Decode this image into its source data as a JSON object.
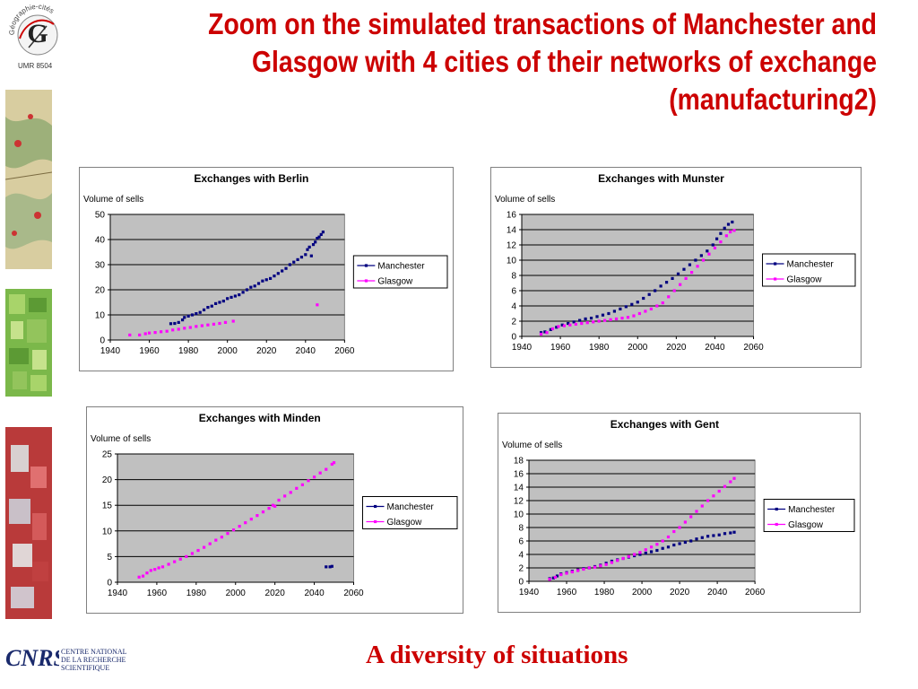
{
  "title_lines": [
    "Zoom on the simulated transactions of Manchester and",
    "Glasgow with 4 cities of their networks of exchange",
    "(manufacturing2)"
  ],
  "logo": {
    "name": "Géographie-cités",
    "label": "UMR 8504"
  },
  "footer": "A diversity of situations",
  "cnrs": {
    "text": "CNRS",
    "lines": [
      "CENTRE NATIONAL",
      "DE LA RECHERCHE",
      "SCIENTIFIQUE"
    ]
  },
  "colors": {
    "title": "#cc0000",
    "manchester": "#000080",
    "glasgow": "#ff00ff",
    "plot_bg": "#c0c0c0"
  },
  "chart_data": [
    {
      "type": "scatter",
      "title": "Exchanges with Berlin",
      "ylabel": "Volume of sells",
      "xlabel": "",
      "xlim": [
        1940,
        2060
      ],
      "ylim": [
        0,
        50
      ],
      "xticks": [
        1940,
        1960,
        1980,
        2000,
        2020,
        2040,
        2060
      ],
      "yticks": [
        0,
        10,
        20,
        30,
        40,
        50
      ],
      "grid": true,
      "legend": "right",
      "series": [
        {
          "name": "Manchester",
          "points": [
            [
              1971,
              6.5
            ],
            [
              1973,
              6.6
            ],
            [
              1975,
              7
            ],
            [
              1977,
              8
            ],
            [
              1978,
              9
            ],
            [
              1980,
              9.5
            ],
            [
              1982,
              10
            ],
            [
              1984,
              10.5
            ],
            [
              1986,
              11
            ],
            [
              1988,
              12
            ],
            [
              1990,
              13
            ],
            [
              1992,
              13.5
            ],
            [
              1994,
              14.5
            ],
            [
              1996,
              15
            ],
            [
              1998,
              15.5
            ],
            [
              2000,
              16.5
            ],
            [
              2002,
              17
            ],
            [
              2004,
              17.5
            ],
            [
              2006,
              18
            ],
            [
              2008,
              19
            ],
            [
              2010,
              20
            ],
            [
              2012,
              21
            ],
            [
              2014,
              21.5
            ],
            [
              2016,
              22.5
            ],
            [
              2018,
              23.5
            ],
            [
              2020,
              24
            ],
            [
              2022,
              24.5
            ],
            [
              2024,
              25.5
            ],
            [
              2026,
              26.5
            ],
            [
              2028,
              27.5
            ],
            [
              2030,
              28.5
            ],
            [
              2032,
              30
            ],
            [
              2034,
              31
            ],
            [
              2036,
              32
            ],
            [
              2038,
              33
            ],
            [
              2040,
              34
            ],
            [
              2041,
              36
            ],
            [
              2042,
              37
            ],
            [
              2043,
              33.5
            ],
            [
              2044,
              38
            ],
            [
              2045,
              39
            ],
            [
              2046,
              40.5
            ],
            [
              2047,
              41
            ],
            [
              2048,
              42
            ],
            [
              2049,
              43
            ]
          ]
        },
        {
          "name": "Glasgow",
          "points": [
            [
              1950,
              2
            ],
            [
              1955,
              2
            ],
            [
              1958,
              2.5
            ],
            [
              1960,
              2.8
            ],
            [
              1963,
              3
            ],
            [
              1966,
              3.3
            ],
            [
              1969,
              3.5
            ],
            [
              1972,
              4
            ],
            [
              1975,
              4.3
            ],
            [
              1978,
              4.7
            ],
            [
              1981,
              5
            ],
            [
              1984,
              5.4
            ],
            [
              1987,
              5.7
            ],
            [
              1990,
              6
            ],
            [
              1993,
              6.3
            ],
            [
              1996,
              6.6
            ],
            [
              1999,
              7
            ],
            [
              2003,
              7.5
            ],
            [
              2046,
              14
            ]
          ]
        }
      ]
    },
    {
      "type": "scatter",
      "title": "Exchanges with Munster",
      "ylabel": "Volume of sells",
      "xlabel": "",
      "xlim": [
        1940,
        2060
      ],
      "ylim": [
        0,
        16
      ],
      "xticks": [
        1940,
        1960,
        1980,
        2000,
        2020,
        2040,
        2060
      ],
      "yticks": [
        0,
        2,
        4,
        6,
        8,
        10,
        12,
        14,
        16
      ],
      "grid": true,
      "legend": "right",
      "series": [
        {
          "name": "Manchester",
          "points": [
            [
              1950,
              0.5
            ],
            [
              1952,
              0.6
            ],
            [
              1955,
              0.9
            ],
            [
              1958,
              1.2
            ],
            [
              1961,
              1.5
            ],
            [
              1964,
              1.7
            ],
            [
              1967,
              1.9
            ],
            [
              1970,
              2.1
            ],
            [
              1973,
              2.3
            ],
            [
              1976,
              2.4
            ],
            [
              1979,
              2.6
            ],
            [
              1982,
              2.8
            ],
            [
              1985,
              3
            ],
            [
              1988,
              3.3
            ],
            [
              1991,
              3.6
            ],
            [
              1994,
              3.9
            ],
            [
              1997,
              4.2
            ],
            [
              2000,
              4.5
            ],
            [
              2003,
              5
            ],
            [
              2006,
              5.5
            ],
            [
              2009,
              6
            ],
            [
              2012,
              6.6
            ],
            [
              2015,
              7.1
            ],
            [
              2018,
              7.6
            ],
            [
              2021,
              8.2
            ],
            [
              2024,
              8.8
            ],
            [
              2027,
              9.4
            ],
            [
              2030,
              10
            ],
            [
              2033,
              10.6
            ],
            [
              2036,
              11.2
            ],
            [
              2039,
              12
            ],
            [
              2041,
              12.8
            ],
            [
              2043,
              13.5
            ],
            [
              2045,
              14.2
            ],
            [
              2047,
              14.7
            ],
            [
              2049,
              15
            ]
          ]
        },
        {
          "name": "Glasgow",
          "points": [
            [
              1950,
              0.3
            ],
            [
              1953,
              0.5
            ],
            [
              1956,
              1
            ],
            [
              1959,
              1.3
            ],
            [
              1962,
              1.4
            ],
            [
              1965,
              1.5
            ],
            [
              1968,
              1.6
            ],
            [
              1971,
              1.7
            ],
            [
              1974,
              1.8
            ],
            [
              1977,
              1.9
            ],
            [
              1980,
              2
            ],
            [
              1983,
              2.1
            ],
            [
              1986,
              2.2
            ],
            [
              1989,
              2.3
            ],
            [
              1992,
              2.4
            ],
            [
              1995,
              2.5
            ],
            [
              1998,
              2.7
            ],
            [
              2001,
              3
            ],
            [
              2004,
              3.3
            ],
            [
              2007,
              3.6
            ],
            [
              2010,
              4
            ],
            [
              2013,
              4.4
            ],
            [
              2016,
              5.2
            ],
            [
              2019,
              6
            ],
            [
              2022,
              6.8
            ],
            [
              2025,
              7.6
            ],
            [
              2028,
              8.4
            ],
            [
              2031,
              9.2
            ],
            [
              2034,
              10
            ],
            [
              2037,
              10.8
            ],
            [
              2040,
              11.6
            ],
            [
              2043,
              12.4
            ],
            [
              2046,
              13.2
            ],
            [
              2048,
              13.7
            ],
            [
              2050,
              13.9
            ]
          ]
        }
      ]
    },
    {
      "type": "scatter",
      "title": "Exchanges with Minden",
      "ylabel": "Volume of sells",
      "xlabel": "",
      "xlim": [
        1940,
        2060
      ],
      "ylim": [
        0,
        25
      ],
      "xticks": [
        1940,
        1960,
        1980,
        2000,
        2020,
        2040,
        2060
      ],
      "yticks": [
        0,
        5,
        10,
        15,
        20,
        25
      ],
      "grid": true,
      "legend": "right",
      "series": [
        {
          "name": "Manchester",
          "points": [
            [
              2046,
              3
            ],
            [
              2048,
              3
            ],
            [
              2049,
              3.1
            ]
          ]
        },
        {
          "name": "Glasgow",
          "points": [
            [
              1951,
              1
            ],
            [
              1953,
              1.2
            ],
            [
              1955,
              1.8
            ],
            [
              1957,
              2.3
            ],
            [
              1959,
              2.5
            ],
            [
              1961,
              2.8
            ],
            [
              1963,
              3
            ],
            [
              1966,
              3.5
            ],
            [
              1969,
              4
            ],
            [
              1972,
              4.5
            ],
            [
              1975,
              5
            ],
            [
              1978,
              5.6
            ],
            [
              1981,
              6.2
            ],
            [
              1984,
              6.8
            ],
            [
              1987,
              7.5
            ],
            [
              1990,
              8.2
            ],
            [
              1993,
              8.8
            ],
            [
              1996,
              9.5
            ],
            [
              1999,
              10.2
            ],
            [
              2002,
              10.9
            ],
            [
              2005,
              11.6
            ],
            [
              2008,
              12.3
            ],
            [
              2011,
              13
            ],
            [
              2014,
              13.7
            ],
            [
              2017,
              14.4
            ],
            [
              2019,
              15
            ],
            [
              2020,
              14.8
            ],
            [
              2022,
              16
            ],
            [
              2025,
              16.8
            ],
            [
              2028,
              17.5
            ],
            [
              2031,
              18.3
            ],
            [
              2034,
              19
            ],
            [
              2037,
              19.8
            ],
            [
              2040,
              20.5
            ],
            [
              2043,
              21.3
            ],
            [
              2046,
              22
            ],
            [
              2049,
              23
            ],
            [
              2050,
              23.3
            ]
          ]
        }
      ]
    },
    {
      "type": "scatter",
      "title": "Exchanges with Gent",
      "ylabel": "Volume of sells",
      "xlabel": "",
      "xlim": [
        1940,
        2060
      ],
      "ylim": [
        0,
        18
      ],
      "xticks": [
        1940,
        1960,
        1980,
        2000,
        2020,
        2040,
        2060
      ],
      "yticks": [
        0,
        2,
        4,
        6,
        8,
        10,
        12,
        14,
        16,
        18
      ],
      "grid": true,
      "legend": "right",
      "series": [
        {
          "name": "Manchester",
          "points": [
            [
              1951,
              0.4
            ],
            [
              1953,
              0.5
            ],
            [
              1955,
              0.8
            ],
            [
              1957,
              1.1
            ],
            [
              1960,
              1.3
            ],
            [
              1963,
              1.5
            ],
            [
              1966,
              1.7
            ],
            [
              1969,
              1.9
            ],
            [
              1972,
              2
            ],
            [
              1975,
              2.2
            ],
            [
              1978,
              2.4
            ],
            [
              1981,
              2.7
            ],
            [
              1984,
              3
            ],
            [
              1987,
              3.2
            ],
            [
              1990,
              3.4
            ],
            [
              1993,
              3.6
            ],
            [
              1996,
              3.8
            ],
            [
              1999,
              4
            ],
            [
              2002,
              4.2
            ],
            [
              2005,
              4.4
            ],
            [
              2008,
              4.6
            ],
            [
              2011,
              4.9
            ],
            [
              2014,
              5.1
            ],
            [
              2017,
              5.4
            ],
            [
              2020,
              5.6
            ],
            [
              2023,
              5.8
            ],
            [
              2026,
              6
            ],
            [
              2029,
              6.3
            ],
            [
              2032,
              6.5
            ],
            [
              2035,
              6.7
            ],
            [
              2038,
              6.8
            ],
            [
              2041,
              6.9
            ],
            [
              2044,
              7.1
            ],
            [
              2047,
              7.2
            ],
            [
              2049,
              7.3
            ]
          ]
        },
        {
          "name": "Glasgow",
          "points": [
            [
              1951,
              0.3
            ],
            [
              1954,
              0.6
            ],
            [
              1957,
              1
            ],
            [
              1960,
              1.2
            ],
            [
              1963,
              1.4
            ],
            [
              1966,
              1.6
            ],
            [
              1969,
              1.8
            ],
            [
              1972,
              2
            ],
            [
              1975,
              2.1
            ],
            [
              1978,
              2.3
            ],
            [
              1981,
              2.5
            ],
            [
              1984,
              2.8
            ],
            [
              1987,
              3.1
            ],
            [
              1990,
              3.4
            ],
            [
              1993,
              3.7
            ],
            [
              1996,
              4
            ],
            [
              1999,
              4.3
            ],
            [
              2002,
              4.7
            ],
            [
              2005,
              5.1
            ],
            [
              2008,
              5.5
            ],
            [
              2011,
              6
            ],
            [
              2014,
              6.6
            ],
            [
              2017,
              7.4
            ],
            [
              2020,
              8
            ],
            [
              2023,
              8.8
            ],
            [
              2026,
              9.6
            ],
            [
              2029,
              10.4
            ],
            [
              2032,
              11.2
            ],
            [
              2035,
              12
            ],
            [
              2038,
              12.7
            ],
            [
              2041,
              13.4
            ],
            [
              2044,
              14.1
            ],
            [
              2047,
              14.8
            ],
            [
              2049,
              15.3
            ]
          ]
        }
      ]
    }
  ]
}
